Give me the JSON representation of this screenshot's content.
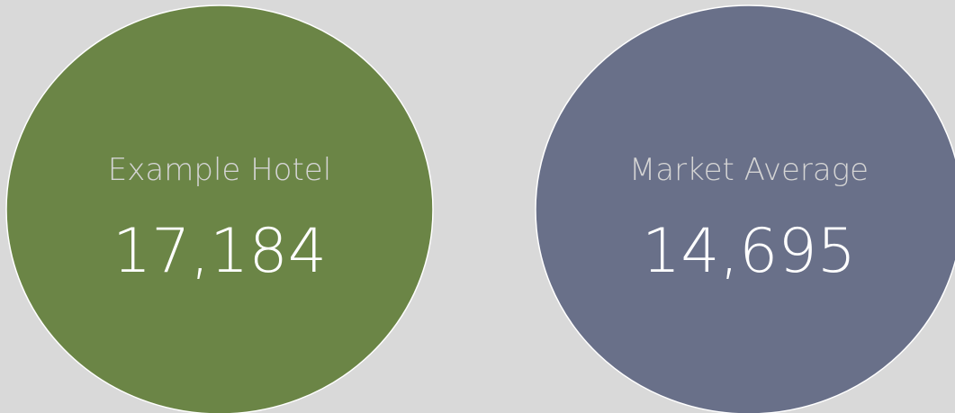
{
  "cards": [
    {
      "label": "Example Hotel",
      "value": "17,184",
      "color": "#6b8546"
    },
    {
      "label": "Market Average",
      "value": "14,695",
      "color": "#697089"
    }
  ]
}
